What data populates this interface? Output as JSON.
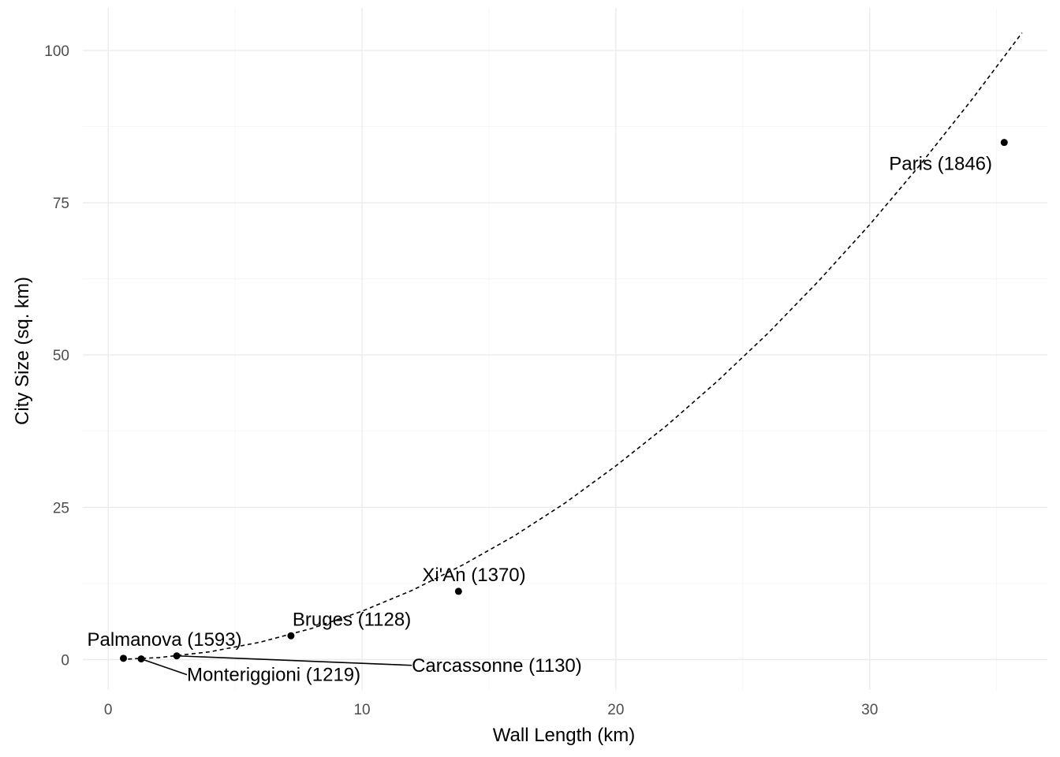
{
  "chart_data": {
    "type": "scatter",
    "xlabel": "Wall Length (km)",
    "ylabel": "City Size (sq. km)",
    "xlim": [
      -1,
      37
    ],
    "ylim": [
      -5,
      107
    ],
    "x_ticks": [
      0,
      10,
      20,
      30
    ],
    "y_ticks": [
      0,
      25,
      50,
      75,
      100
    ],
    "grid": true,
    "points": [
      {
        "name": "Palmanova (1593)",
        "x": 0.6,
        "y": 0.2
      },
      {
        "name": "Monteriggioni (1219)",
        "x": 1.3,
        "y": 0.1
      },
      {
        "name": "Carcassonne (1130)",
        "x": 2.7,
        "y": 0.6
      },
      {
        "name": "Bruges (1128)",
        "x": 7.2,
        "y": 3.9
      },
      {
        "name": "Xi'An (1370)",
        "x": 13.8,
        "y": 11.2
      },
      {
        "name": "Paris (1846)",
        "x": 35.3,
        "y": 84.9
      }
    ],
    "trend": {
      "style": "dashed",
      "x": [
        0.5,
        2,
        4,
        6,
        8,
        10,
        12,
        14,
        16,
        18,
        20,
        22,
        24,
        26,
        28,
        30,
        32,
        34,
        36
      ],
      "y": [
        0.02,
        0.32,
        1.27,
        2.86,
        5.08,
        7.94,
        11.4,
        15.6,
        20.3,
        25.7,
        31.8,
        38.4,
        45.7,
        53.6,
        62.2,
        71.4,
        81.3,
        91.8,
        102.9
      ]
    }
  }
}
